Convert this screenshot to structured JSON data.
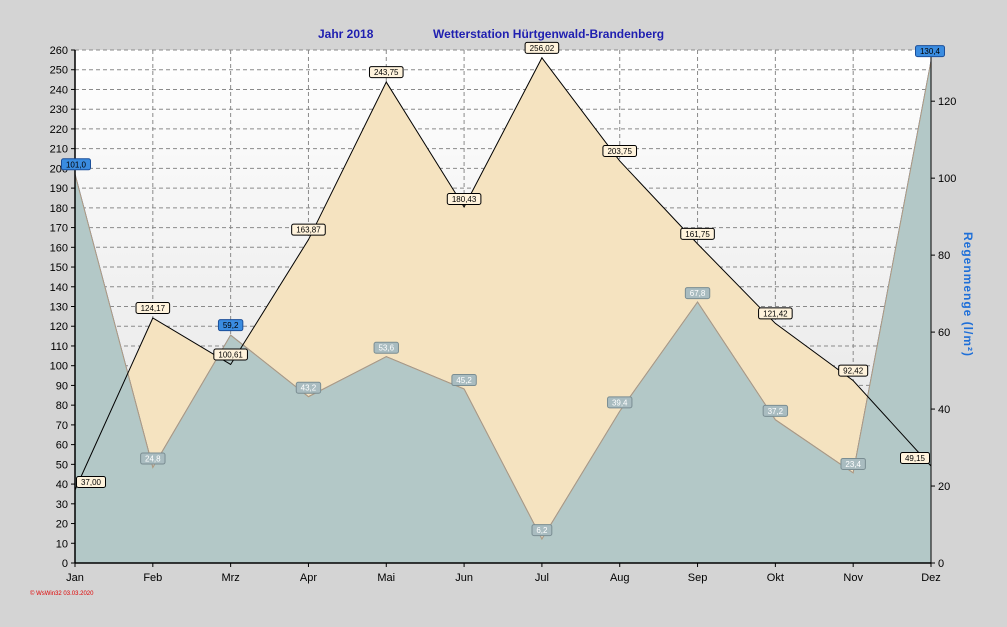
{
  "chart_data": {
    "type": "area",
    "title_year": "Jahr  2018",
    "title_station": "Wetterstation Hürtgenwald-Brandenberg",
    "ylabel_right": "Regenmenge   (l/m²)",
    "ylabel_left": "",
    "footer": "© WsWin32  03.03.2020",
    "categories": [
      "Jan",
      "Feb",
      "Mrz",
      "Apr",
      "Mai",
      "Jun",
      "Jul",
      "Aug",
      "Sep",
      "Okt",
      "Nov",
      "Dez"
    ],
    "ylim_left": [
      0,
      260
    ],
    "ylim_right": [
      0,
      133.3
    ],
    "left_ticks": [
      0,
      10,
      20,
      30,
      40,
      50,
      60,
      70,
      80,
      90,
      100,
      110,
      120,
      130,
      140,
      150,
      160,
      170,
      180,
      190,
      200,
      210,
      220,
      230,
      240,
      250,
      260
    ],
    "right_ticks": [
      0,
      20,
      40,
      60,
      80,
      100,
      120
    ],
    "series": [
      {
        "axis": "left",
        "color": "#f5e3c0",
        "line": "#000000",
        "values": [
          37.0,
          124.17,
          100.61,
          163.87,
          243.75,
          180.43,
          256.02,
          203.75,
          161.75,
          121.42,
          92.42,
          49.15
        ],
        "labels": [
          "37,00",
          "124,17",
          "100,61",
          "163,87",
          "243,75",
          "180,43",
          "256,02",
          "203,75",
          "161,75",
          "121,42",
          "92,42",
          "49,15"
        ]
      },
      {
        "axis": "right",
        "color": "#b7c9c4",
        "line": "#b09a80",
        "values": [
          null,
          24.8,
          null,
          43.2,
          53.6,
          45.2,
          6.2,
          39.4,
          67.8,
          37.2,
          23.4,
          null
        ],
        "labels": [
          "",
          "24,8",
          "",
          "43,2",
          "53,6",
          "45,2",
          "6,2",
          "39,4",
          "67,8",
          "37,2",
          "23,4",
          ""
        ]
      },
      {
        "axis": "right",
        "color": "#6aaef2",
        "line": "#1b5fc4",
        "values": [
          101.0,
          null,
          59.2,
          null,
          null,
          null,
          null,
          null,
          null,
          null,
          null,
          130.4
        ],
        "labels": [
          "101,0",
          "",
          "59,2",
          "",
          "",
          "",
          "",
          "",
          "",
          "",
          "",
          "130,4"
        ]
      }
    ],
    "grid": true
  }
}
